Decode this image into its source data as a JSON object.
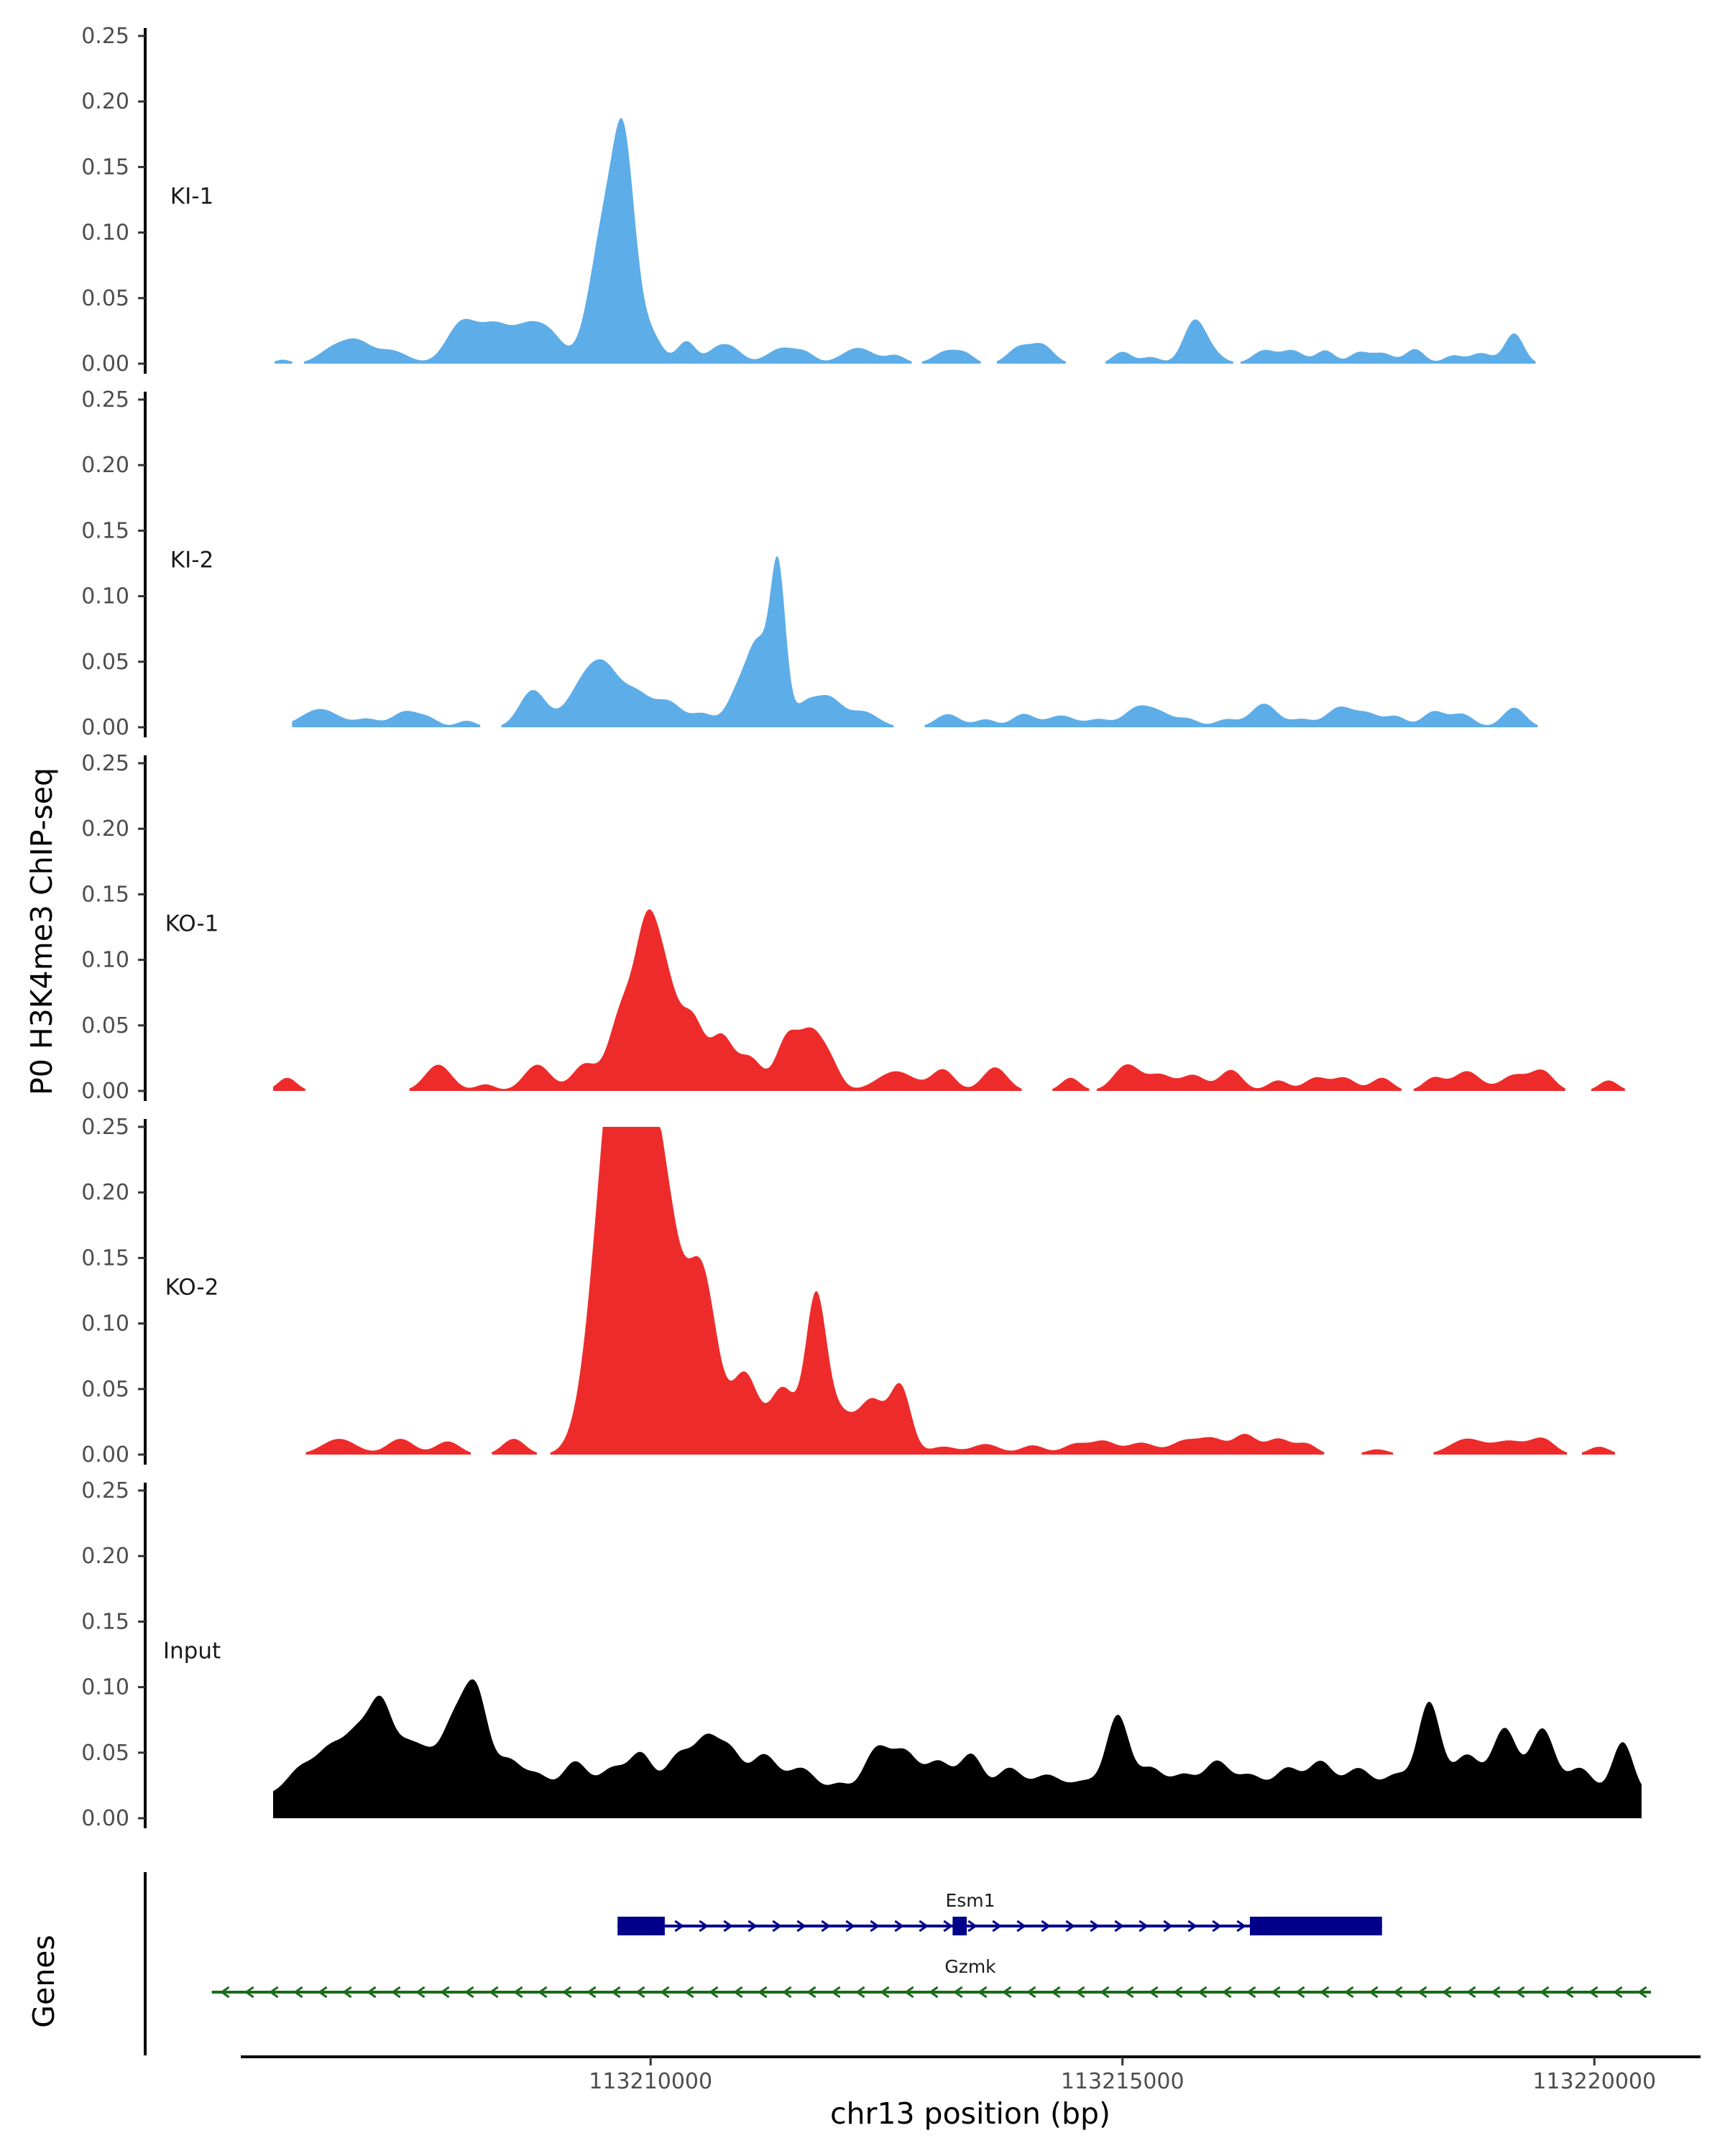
{
  "chart_data": {
    "type": "area",
    "ylabel": "P0 H3K4me3 ChIP-seq",
    "xlabel": "chr13 position (bp)",
    "xlim": [
      113206000,
      113220600
    ],
    "ylim": [
      0,
      0.25
    ],
    "yticks": [
      "0.00",
      "0.05",
      "0.10",
      "0.15",
      "0.20",
      "0.25"
    ],
    "xticks": [
      {
        "value": 113210000,
        "label": "113210000"
      },
      {
        "value": 113215000,
        "label": "113215000"
      },
      {
        "value": 113220000,
        "label": "113220000"
      }
    ],
    "tracks": [
      {
        "name": "KI-1",
        "color": "#5dade8",
        "x_start": 113206000,
        "x_end": 113220000,
        "x_range": [
          113206000,
          113220000
        ],
        "peaks": [
          [
            113206100,
            0.003,
            80
          ],
          [
            113206650,
            0.012,
            160
          ],
          [
            113206900,
            0.014,
            140
          ],
          [
            113207250,
            0.01,
            170
          ],
          [
            113208000,
            0.031,
            160
          ],
          [
            113208350,
            0.027,
            160
          ],
          [
            113208700,
            0.026,
            160
          ],
          [
            113208950,
            0.018,
            140
          ],
          [
            113209450,
            0.035,
            140
          ],
          [
            113209650,
            0.115,
            190
          ],
          [
            113209720,
            0.07,
            100
          ],
          [
            113210050,
            0.01,
            100
          ],
          [
            113210380,
            0.017,
            100
          ],
          [
            113210680,
            0.008,
            100
          ],
          [
            113210850,
            0.012,
            120
          ],
          [
            113211400,
            0.012,
            160
          ],
          [
            113211650,
            0.006,
            100
          ],
          [
            113212200,
            0.012,
            170
          ],
          [
            113212600,
            0.006,
            100
          ],
          [
            113213150,
            0.01,
            140
          ],
          [
            113213350,
            0.005,
            90
          ],
          [
            113213900,
            0.012,
            120
          ],
          [
            113214150,
            0.014,
            120
          ],
          [
            113215000,
            0.009,
            100
          ],
          [
            113215300,
            0.005,
            100
          ],
          [
            113215750,
            0.022,
            110
          ],
          [
            113215850,
            0.014,
            150
          ],
          [
            113216500,
            0.01,
            120
          ],
          [
            113216800,
            0.01,
            120
          ],
          [
            113217150,
            0.01,
            100
          ],
          [
            113217500,
            0.008,
            100
          ],
          [
            113217750,
            0.008,
            120
          ],
          [
            113218100,
            0.011,
            100
          ],
          [
            113218500,
            0.006,
            100
          ],
          [
            113218800,
            0.008,
            120
          ],
          [
            113219150,
            0.023,
            100
          ]
        ]
      },
      {
        "name": "KI-2",
        "color": "#5dade8",
        "x_start": 113206200,
        "x_end": 113219700,
        "x_range": [
          113206200,
          113219700
        ],
        "peaks": [
          [
            113206500,
            0.014,
            200
          ],
          [
            113207000,
            0.006,
            120
          ],
          [
            113207400,
            0.012,
            140
          ],
          [
            113207650,
            0.006,
            110
          ],
          [
            113208050,
            0.005,
            100
          ],
          [
            113208750,
            0.028,
            140
          ],
          [
            113209350,
            0.04,
            200
          ],
          [
            113209550,
            0.02,
            140
          ],
          [
            113209850,
            0.025,
            160
          ],
          [
            113210200,
            0.018,
            140
          ],
          [
            113210550,
            0.01,
            120
          ],
          [
            113210950,
            0.03,
            130
          ],
          [
            113211150,
            0.055,
            110
          ],
          [
            113211350,
            0.118,
            80
          ],
          [
            113211650,
            0.018,
            130
          ],
          [
            113211900,
            0.02,
            130
          ],
          [
            113212250,
            0.012,
            160
          ],
          [
            113213150,
            0.01,
            130
          ],
          [
            113213550,
            0.006,
            110
          ],
          [
            113213950,
            0.01,
            120
          ],
          [
            113214350,
            0.009,
            150
          ],
          [
            113214750,
            0.006,
            120
          ],
          [
            113215150,
            0.014,
            140
          ],
          [
            113215400,
            0.01,
            140
          ],
          [
            113215700,
            0.006,
            110
          ],
          [
            113216100,
            0.006,
            120
          ],
          [
            113216500,
            0.018,
            140
          ],
          [
            113216900,
            0.006,
            120
          ],
          [
            113217300,
            0.015,
            140
          ],
          [
            113217600,
            0.01,
            130
          ],
          [
            113217900,
            0.008,
            110
          ],
          [
            113218300,
            0.012,
            120
          ],
          [
            113218600,
            0.01,
            120
          ],
          [
            113219150,
            0.015,
            120
          ]
        ]
      },
      {
        "name": "KO-1",
        "color": "#ee2b2b",
        "x_start": 113206000,
        "x_end": 113220600,
        "x_range": [
          113206000,
          113220600
        ],
        "peaks": [
          [
            113206150,
            0.01,
            100
          ],
          [
            113207750,
            0.02,
            140
          ],
          [
            113208250,
            0.005,
            100
          ],
          [
            113208800,
            0.02,
            140
          ],
          [
            113209300,
            0.02,
            130
          ],
          [
            113209700,
            0.06,
            140
          ],
          [
            113209950,
            0.095,
            120
          ],
          [
            113210150,
            0.08,
            140
          ],
          [
            113210450,
            0.05,
            120
          ],
          [
            113210750,
            0.04,
            120
          ],
          [
            113211050,
            0.025,
            130
          ],
          [
            113211450,
            0.04,
            120
          ],
          [
            113211700,
            0.04,
            120
          ],
          [
            113211900,
            0.02,
            110
          ],
          [
            113212600,
            0.015,
            200
          ],
          [
            113213100,
            0.016,
            120
          ],
          [
            113213650,
            0.018,
            130
          ],
          [
            113214450,
            0.01,
            100
          ],
          [
            113215050,
            0.02,
            140
          ],
          [
            113215400,
            0.012,
            130
          ],
          [
            113215750,
            0.012,
            130
          ],
          [
            113216150,
            0.016,
            120
          ],
          [
            113216650,
            0.008,
            110
          ],
          [
            113217050,
            0.01,
            120
          ],
          [
            113217350,
            0.01,
            120
          ],
          [
            113217750,
            0.01,
            110
          ],
          [
            113218300,
            0.01,
            110
          ],
          [
            113218650,
            0.015,
            140
          ],
          [
            113219150,
            0.012,
            140
          ],
          [
            113219450,
            0.015,
            120
          ],
          [
            113220150,
            0.008,
            100
          ]
        ]
      },
      {
        "name": "KO-2",
        "color": "#ee2b2b",
        "x_start": 113206300,
        "x_end": 113220600,
        "x_range": [
          113206300,
          113220600
        ],
        "peaks": [
          [
            113206700,
            0.012,
            180
          ],
          [
            113207350,
            0.012,
            140
          ],
          [
            113207850,
            0.01,
            130
          ],
          [
            113208550,
            0.012,
            120
          ],
          [
            113209550,
            0.16,
            200
          ],
          [
            113209750,
            0.215,
            200
          ],
          [
            113210100,
            0.2,
            200
          ],
          [
            113210550,
            0.13,
            160
          ],
          [
            113211000,
            0.06,
            140
          ],
          [
            113211400,
            0.05,
            140
          ],
          [
            113211750,
            0.115,
            110
          ],
          [
            113212000,
            0.03,
            150
          ],
          [
            113212350,
            0.04,
            140
          ],
          [
            113212650,
            0.05,
            110
          ],
          [
            113213100,
            0.006,
            140
          ],
          [
            113213550,
            0.008,
            150
          ],
          [
            113214050,
            0.007,
            130
          ],
          [
            113214500,
            0.008,
            130
          ],
          [
            113214800,
            0.01,
            130
          ],
          [
            113215200,
            0.009,
            150
          ],
          [
            113215650,
            0.01,
            140
          ],
          [
            113215950,
            0.012,
            140
          ],
          [
            113216300,
            0.015,
            120
          ],
          [
            113216650,
            0.012,
            130
          ],
          [
            113216950,
            0.008,
            110
          ],
          [
            113217700,
            0.004,
            120
          ],
          [
            113218650,
            0.012,
            180
          ],
          [
            113219100,
            0.01,
            160
          ],
          [
            113219450,
            0.012,
            130
          ],
          [
            113220050,
            0.006,
            110
          ]
        ]
      },
      {
        "name": "Input",
        "color": "#000000",
        "x_start": 113206000,
        "x_end": 113220500,
        "x_range": [
          113206000,
          113220500
        ],
        "base": 0.018,
        "peaks": [
          [
            113206300,
            0.02,
            150
          ],
          [
            113206600,
            0.03,
            140
          ],
          [
            113206900,
            0.045,
            150
          ],
          [
            113207150,
            0.06,
            120
          ],
          [
            113207400,
            0.03,
            120
          ],
          [
            113207600,
            0.025,
            120
          ],
          [
            113207900,
            0.05,
            140
          ],
          [
            113208150,
            0.075,
            130
          ],
          [
            113208500,
            0.025,
            130
          ],
          [
            113208800,
            0.015,
            130
          ],
          [
            113209200,
            0.025,
            130
          ],
          [
            113209600,
            0.02,
            140
          ],
          [
            113209900,
            0.03,
            120
          ],
          [
            113210300,
            0.03,
            140
          ],
          [
            113210600,
            0.04,
            130
          ],
          [
            113210850,
            0.03,
            120
          ],
          [
            113211200,
            0.03,
            140
          ],
          [
            113211600,
            0.02,
            150
          ],
          [
            113212000,
            0.008,
            100
          ],
          [
            113212400,
            0.035,
            140
          ],
          [
            113212700,
            0.03,
            130
          ],
          [
            113213050,
            0.025,
            140
          ],
          [
            113213400,
            0.03,
            120
          ],
          [
            113213800,
            0.02,
            130
          ],
          [
            113214200,
            0.015,
            150
          ],
          [
            113214600,
            0.01,
            140
          ],
          [
            113214950,
            0.06,
            120
          ],
          [
            113215300,
            0.02,
            130
          ],
          [
            113215650,
            0.015,
            130
          ],
          [
            113216000,
            0.025,
            130
          ],
          [
            113216350,
            0.015,
            140
          ],
          [
            113216750,
            0.02,
            130
          ],
          [
            113217100,
            0.025,
            130
          ],
          [
            113217500,
            0.02,
            140
          ],
          [
            113217900,
            0.015,
            130
          ],
          [
            113218250,
            0.07,
            120
          ],
          [
            113218650,
            0.03,
            140
          ],
          [
            113219050,
            0.05,
            130
          ],
          [
            113219450,
            0.05,
            130
          ],
          [
            113219850,
            0.02,
            130
          ],
          [
            113220300,
            0.04,
            110
          ]
        ]
      }
    ],
    "gene_track": {
      "label": "Genes",
      "genes": [
        {
          "name": "Esm1",
          "strand": "+",
          "start": 113209650,
          "end": 113217750,
          "color": "#00008b",
          "exons": [
            [
              113209650,
              113210150
            ],
            [
              113213200,
              113213350
            ],
            [
              113216350,
              113217750
            ]
          ]
        },
        {
          "name": "Gzmk",
          "strand": "-",
          "start": 113205350,
          "end": 113220600,
          "color": "#1a6b1a",
          "exons": []
        }
      ]
    }
  }
}
